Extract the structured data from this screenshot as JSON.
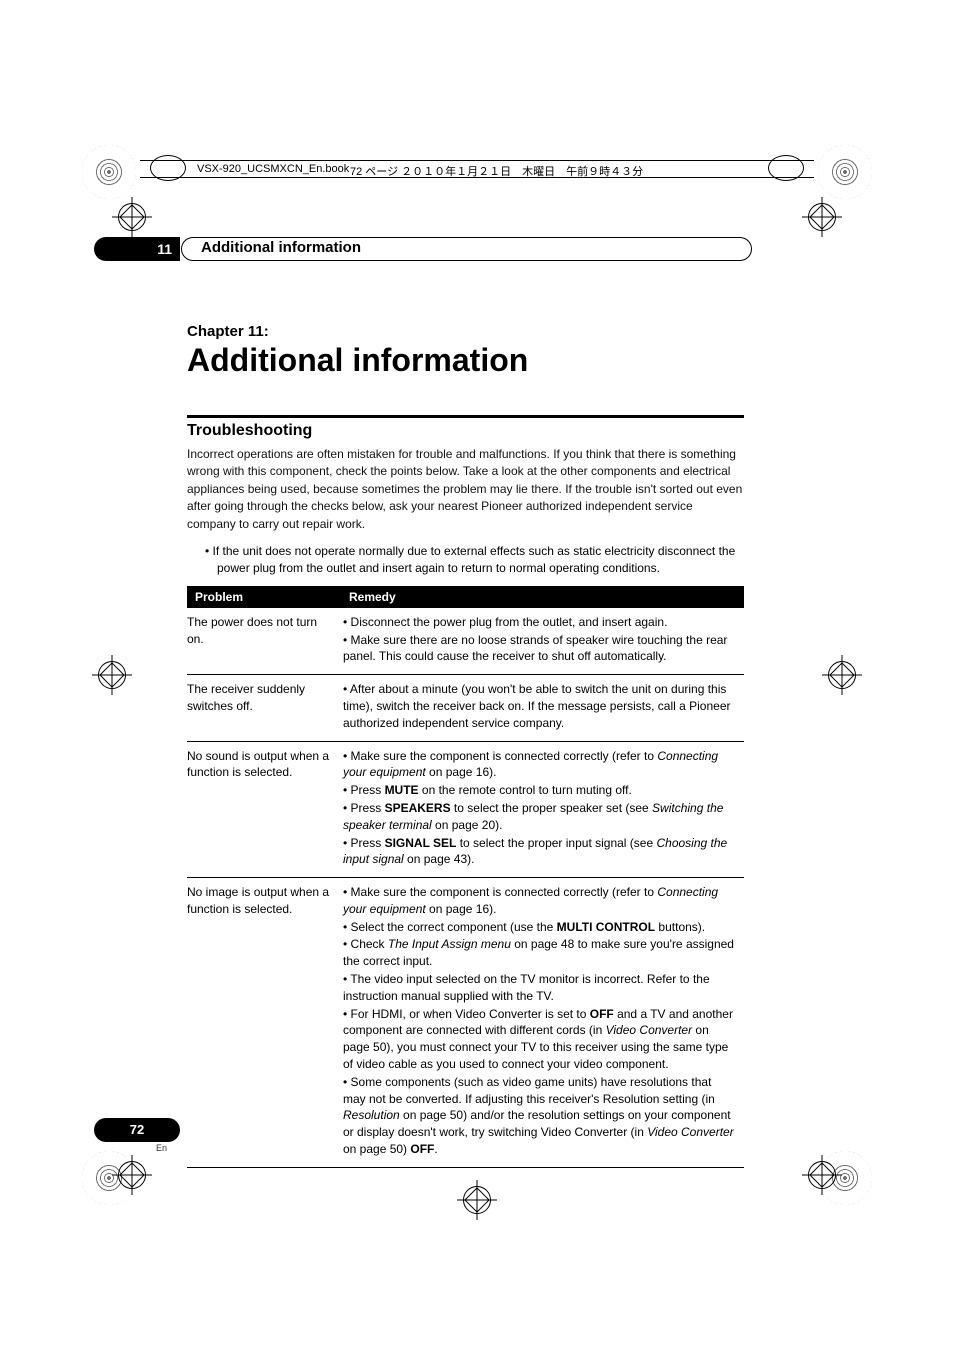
{
  "header": {
    "book": "VSX-920_UCSMXCN_En.book",
    "page_info": "72 ページ ２０１０年１月２１日　木曜日　午前９時４３分"
  },
  "chapter_bar": {
    "number": "11",
    "label": "Additional information"
  },
  "chapter": {
    "prefix": "Chapter 11:",
    "title": "Additional information"
  },
  "section": {
    "title": "Troubleshooting",
    "intro": "Incorrect operations are often mistaken for trouble and malfunctions. If you think that there is something wrong with this component, check the points below. Take a look at the other components and electrical appliances being used, because sometimes the problem may lie there. If the trouble isn't sorted out even after going through the checks below, ask your nearest Pioneer authorized independent service company to carry out repair work.",
    "bullet": "If the unit does not operate normally due to external effects such as static electricity disconnect the power plug from the outlet and insert again to return to normal operating conditions."
  },
  "table": {
    "head_problem": "Problem",
    "head_remedy": "Remedy",
    "rows": [
      {
        "problem": "The power does not turn on.",
        "remedy_html": "<div class='remedy-line'>Disconnect the power plug from the outlet, and insert again.</div><div class='remedy-line'>Make sure there are no loose strands of speaker wire touching the rear panel. This could cause the receiver to shut off automatically.</div>"
      },
      {
        "problem": "The receiver suddenly switches off.",
        "remedy_html": "<div class='remedy-line'>After about a minute (you won't be able to switch the unit on during this time), switch the receiver back on. If the message persists, call a Pioneer authorized independent service company.</div>"
      },
      {
        "problem": "No sound is output when a function is selected.",
        "remedy_html": "<div class='remedy-line'>Make sure the component is connected correctly (refer to <span class='i'>Connecting your equipment</span> on page 16).</div><div class='remedy-line'>Press <span class='b'>MUTE</span> on the remote control to turn muting off.</div><div class='remedy-line'>Press <span class='b'>SPEAKERS</span> to select the proper speaker set (see <span class='i'>Switching the speaker terminal</span> on page 20).</div><div class='remedy-line'>Press <span class='b'>SIGNAL SEL</span> to select the proper input signal (see <span class='i'>Choosing the input signal</span> on page 43).</div>"
      },
      {
        "problem": "No image is output when a function is selected.",
        "remedy_html": "<div class='remedy-line'>Make sure the component is connected correctly (refer to <span class='i'>Connecting your equipment</span> on page 16).</div><div class='remedy-line'>Select the correct component (use the <span class='b'>MULTI CONTROL</span> buttons).</div><div class='remedy-line'>Check <span class='i'>The Input Assign menu</span> on page 48 to make sure you're assigned the correct input.</div><div class='remedy-line'>The video input selected on the TV monitor is incorrect. Refer to the instruction manual supplied with the TV.</div><div class='remedy-line'>For HDMI, or when Video Converter is set to <span class='b'>OFF</span> and a TV and another component are connected with different cords (in <span class='i'>Video Converter</span> on page 50), you must connect your TV to this receiver using the same type of video cable as you used to connect your video component.</div><div class='remedy-line'>Some components (such as video game units) have resolutions that may not be converted. If adjusting this receiver's Resolution setting (in <span class='i'>Resolution</span> on page 50) and/or the resolution settings on your component or display doesn't work, try switching Video Converter (in <span class='i'>Video Converter</span> on page 50) <span class='b'>OFF</span>.</div>"
      }
    ]
  },
  "footer": {
    "page": "72",
    "lang": "En"
  }
}
